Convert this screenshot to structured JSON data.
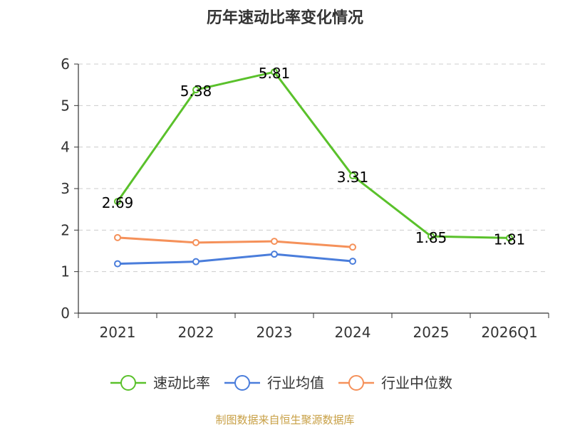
{
  "chart_data": {
    "type": "line",
    "title": "历年速动比率变化情况",
    "categories": [
      "2021",
      "2022",
      "2023",
      "2024",
      "2025",
      "2026Q1"
    ],
    "ylim": [
      0,
      6
    ],
    "yticks": [
      "0",
      "1",
      "2",
      "3",
      "4",
      "5",
      "6"
    ],
    "grid": true,
    "legend_position": "bottom",
    "series": [
      {
        "name": "速动比率",
        "color": "#5ac12b",
        "values": [
          2.69,
          5.38,
          5.81,
          3.31,
          1.85,
          1.81
        ],
        "labels": [
          "2.69",
          "5.38",
          "5.81",
          "3.31",
          "1.85",
          "1.81"
        ]
      },
      {
        "name": "行业均值",
        "color": "#4a7ddb",
        "values": [
          1.19,
          1.24,
          1.42,
          1.25,
          null,
          null
        ]
      },
      {
        "name": "行业中位数",
        "color": "#f5915a",
        "values": [
          1.82,
          1.7,
          1.73,
          1.59,
          null,
          null
        ]
      }
    ],
    "source": "制图数据来自恒生聚源数据库"
  }
}
